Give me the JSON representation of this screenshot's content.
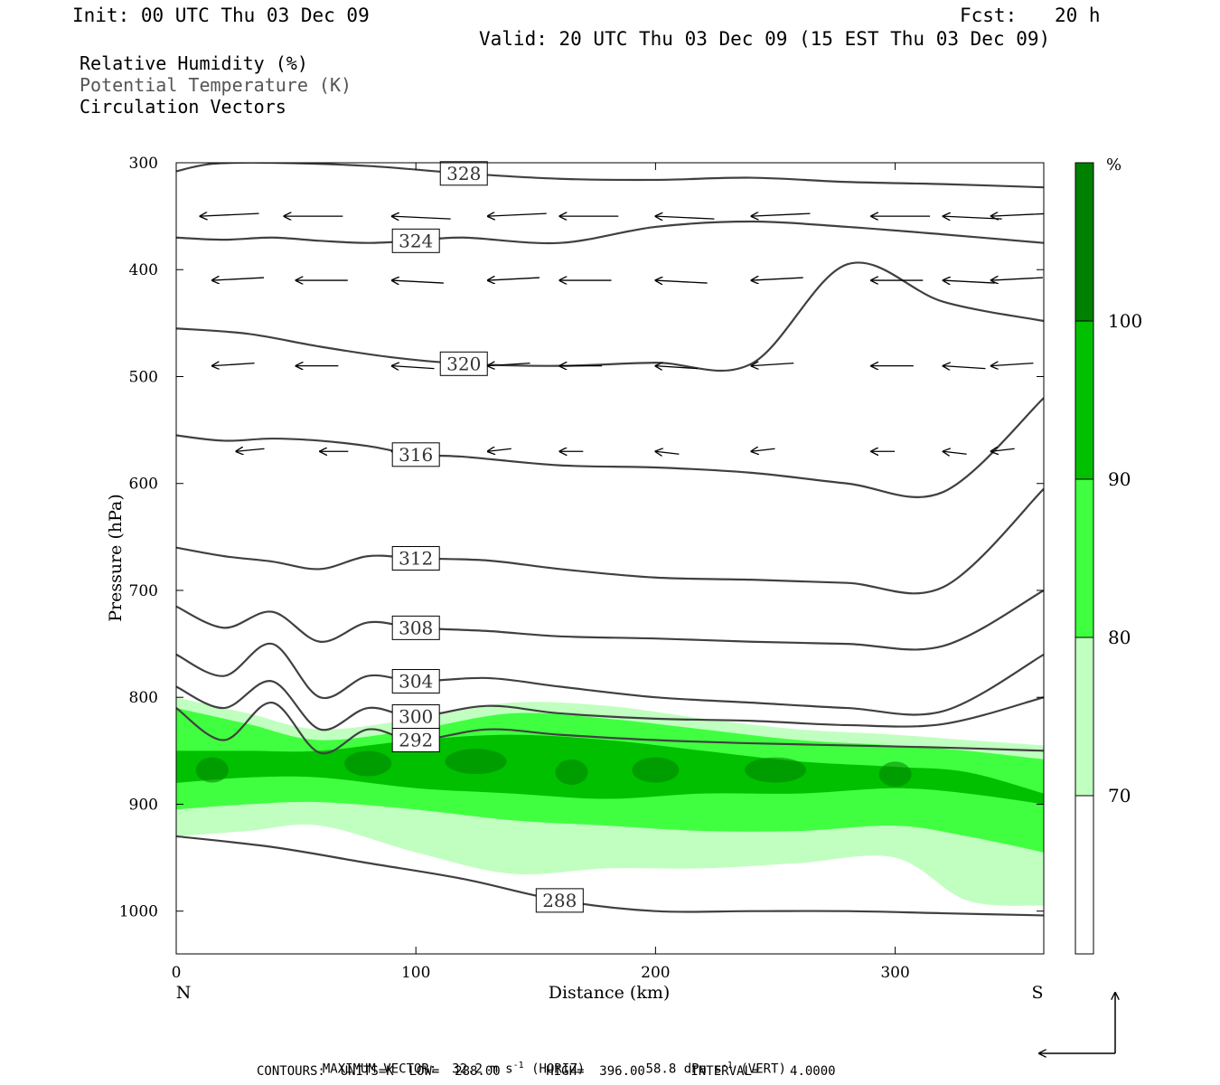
{
  "header": {
    "init": "Init: 00 UTC Thu 03 Dec 09",
    "fcst_label": "Fcst:",
    "fcst_value": "20 h",
    "valid": "Valid: 20 UTC Thu 03 Dec 09 (15 EST Thu 03 Dec 09)"
  },
  "fields": {
    "rh": "Relative Humidity (%)",
    "theta": "Potential Temperature (K)",
    "vectors": "Circulation Vectors"
  },
  "footer": {
    "max_vector_label": "MAXIMUM VECTOR:",
    "horiz_value": "32.2",
    "horiz_unit": "m s",
    "horiz_suffix": "(HORIZ)",
    "vert_value": "58.8",
    "vert_unit": "dPa s",
    "vert_suffix": "(VERT)",
    "superscript": "-1",
    "contours_line": "CONTOURS:  UNITS=K  LOW=  288.00      HIGH=  396.00      INTERVAL=    4.0000"
  },
  "colors": {
    "rh_70_80": "#c0ffc0",
    "rh_80_90": "#40ff40",
    "rh_90_100": "#00c000",
    "rh_100": "#008000",
    "contour": "#404040"
  },
  "chart_data": {
    "type": "cross-section",
    "xlabel": "Distance (km)",
    "ylabel": "Pressure (hPa)",
    "xlim": [
      0,
      362
    ],
    "ylim": [
      1040,
      300
    ],
    "x_ticks": [
      0,
      100,
      200,
      300
    ],
    "y_ticks": [
      300,
      400,
      500,
      600,
      700,
      800,
      900,
      1000
    ],
    "left_end_label": "N",
    "right_end_label": "S",
    "colorbar": {
      "unit": "%",
      "levels": [
        70,
        80,
        90,
        100
      ],
      "level_labels": [
        "70",
        "80",
        "90",
        "100"
      ]
    },
    "theta_contours": [
      {
        "value": 328,
        "label": "328",
        "x": [
          0,
          15,
          40,
          80,
          120,
          160,
          200,
          240,
          280,
          320,
          362
        ],
        "p": [
          308,
          301,
          300,
          303,
          310,
          315,
          316,
          314,
          318,
          320,
          323
        ]
      },
      {
        "value": 324,
        "label": "324",
        "x": [
          0,
          20,
          40,
          60,
          80,
          100,
          120,
          160,
          200,
          240,
          280,
          320,
          362
        ],
        "p": [
          370,
          372,
          370,
          373,
          375,
          373,
          370,
          375,
          360,
          355,
          360,
          367,
          375
        ]
      },
      {
        "value": 320,
        "label": "320",
        "x": [
          0,
          30,
          60,
          90,
          120,
          160,
          200,
          240,
          280,
          320,
          362
        ],
        "p": [
          455,
          460,
          472,
          482,
          488,
          490,
          487,
          488,
          395,
          430,
          448
        ]
      },
      {
        "value": 316,
        "label": "316",
        "x": [
          0,
          20,
          40,
          60,
          80,
          100,
          120,
          160,
          200,
          240,
          280,
          320,
          362
        ],
        "p": [
          555,
          560,
          558,
          560,
          565,
          573,
          575,
          583,
          585,
          590,
          600,
          608,
          520
        ]
      },
      {
        "value": 312,
        "label": "312",
        "x": [
          0,
          20,
          40,
          60,
          80,
          100,
          130,
          160,
          200,
          240,
          280,
          320,
          362
        ],
        "p": [
          660,
          668,
          673,
          680,
          668,
          670,
          672,
          680,
          688,
          690,
          693,
          697,
          605
        ]
      },
      {
        "value": 308,
        "label": "308",
        "x": [
          0,
          20,
          40,
          60,
          80,
          100,
          130,
          160,
          200,
          240,
          280,
          320,
          362
        ],
        "p": [
          715,
          735,
          720,
          748,
          730,
          735,
          738,
          743,
          745,
          748,
          750,
          752,
          700
        ]
      },
      {
        "value": 304,
        "label": "304",
        "x": [
          0,
          20,
          40,
          60,
          80,
          100,
          130,
          160,
          200,
          240,
          280,
          320,
          362
        ],
        "p": [
          760,
          780,
          750,
          800,
          780,
          785,
          782,
          790,
          800,
          805,
          810,
          813,
          760
        ]
      },
      {
        "value": 300,
        "label": "300",
        "x": [
          0,
          20,
          40,
          60,
          80,
          100,
          130,
          160,
          200,
          240,
          280,
          320,
          362
        ],
        "p": [
          790,
          810,
          785,
          830,
          810,
          818,
          808,
          815,
          820,
          822,
          826,
          825,
          800
        ]
      },
      {
        "value": 292,
        "label": "292",
        "x": [
          0,
          20,
          40,
          60,
          80,
          100,
          130,
          160,
          200,
          240,
          280,
          320,
          362
        ],
        "p": [
          810,
          840,
          805,
          852,
          830,
          840,
          830,
          835,
          840,
          843,
          845,
          847,
          850
        ]
      },
      {
        "value": 288,
        "label": "288",
        "x": [
          0,
          40,
          80,
          120,
          160,
          200,
          240,
          280,
          320,
          362
        ],
        "p": [
          930,
          940,
          955,
          970,
          990,
          1000,
          1000,
          1000,
          1002,
          1004
        ]
      }
    ],
    "rh_bands": [
      {
        "level": 70,
        "x": [
          0,
          30,
          60,
          100,
          140,
          180,
          220,
          260,
          300,
          330,
          362
        ],
        "top": [
          800,
          815,
          830,
          820,
          805,
          808,
          820,
          830,
          835,
          840,
          845
        ],
        "bottom": [
          930,
          925,
          920,
          945,
          965,
          960,
          960,
          955,
          950,
          990,
          995
        ]
      },
      {
        "level": 80,
        "x": [
          0,
          30,
          60,
          100,
          140,
          180,
          220,
          260,
          300,
          330,
          362
        ],
        "top": [
          810,
          825,
          840,
          830,
          815,
          820,
          830,
          840,
          845,
          850,
          858
        ],
        "bottom": [
          905,
          900,
          898,
          905,
          915,
          920,
          925,
          925,
          920,
          930,
          945
        ]
      },
      {
        "level": 90,
        "x": [
          0,
          30,
          60,
          100,
          140,
          180,
          220,
          260,
          300,
          330,
          362
        ],
        "top": [
          850,
          850,
          850,
          840,
          835,
          840,
          850,
          860,
          865,
          870,
          890
        ],
        "bottom": [
          880,
          875,
          875,
          885,
          890,
          895,
          890,
          890,
          885,
          890,
          900
        ]
      }
    ],
    "vectors": {
      "note": "circulation vectors, shown in data units: x in km, p in hPa, du/dp as rendered components",
      "rows": [
        {
          "p": 350,
          "x": [
            10,
            45,
            90,
            130,
            160,
            200,
            240,
            290,
            320,
            340
          ],
          "u": [
            -25,
            -25,
            -25,
            -25,
            -25,
            -25,
            -25,
            -25,
            -25,
            -25
          ]
        },
        {
          "p": 410,
          "x": [
            15,
            50,
            90,
            130,
            160,
            200,
            240,
            290,
            320,
            340
          ],
          "u": [
            -22,
            -22,
            -22,
            -22,
            -22,
            -22,
            -22,
            -22,
            -22,
            -22
          ]
        },
        {
          "p": 490,
          "x": [
            15,
            50,
            90,
            130,
            160,
            200,
            240,
            290,
            320,
            340
          ],
          "u": [
            -18,
            -18,
            -18,
            -18,
            -18,
            -18,
            -18,
            -18,
            -18,
            -18
          ]
        },
        {
          "p": 570,
          "x": [
            25,
            60,
            90,
            130,
            160,
            200,
            240,
            290,
            320,
            340
          ],
          "u": [
            -12,
            -12,
            -10,
            -10,
            -10,
            -10,
            -10,
            -10,
            -10,
            -10
          ]
        }
      ]
    }
  }
}
